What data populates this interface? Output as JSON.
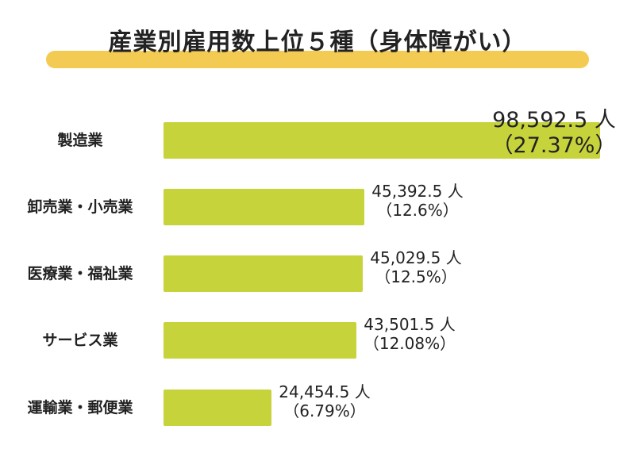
{
  "title": "産業別雇用数上位５種（身体障がい）",
  "colors": {
    "bar": "#c6d33b",
    "title_bar": "#f4cb52"
  },
  "chart_data": {
    "type": "bar",
    "orientation": "horizontal",
    "title": "産業別雇用数上位５種（身体障がい）",
    "categories": [
      "製造業",
      "卸売業・小売業",
      "医療業・福祉業",
      "サービス業",
      "運輸業・郵便業"
    ],
    "values": [
      98592.5,
      45392.5,
      45029.5,
      43501.5,
      24454.5
    ],
    "value_labels": [
      "98,592.5 人",
      "45,392.5 人",
      "45,029.5 人",
      "43,501.5 人",
      "24,454.5 人"
    ],
    "percent_labels": [
      "（27.37%）",
      "（12.6%）",
      "（12.5%）",
      "（12.08%）",
      "（6.79%）"
    ],
    "xlim": [
      0,
      98592.5
    ],
    "grid": false,
    "legend": "none"
  }
}
